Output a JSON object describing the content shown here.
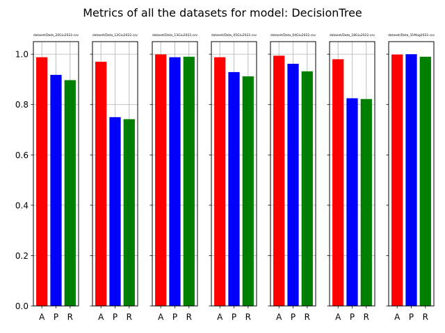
{
  "chart_data": {
    "type": "bar",
    "title": "Metrics of all the datasets for model: DecisionTree",
    "categories": [
      "A",
      "P",
      "R"
    ],
    "bar_colors": [
      "#ff0000",
      "#0000ff",
      "#008000"
    ],
    "ylim": [
      0,
      1.05
    ],
    "yticks": [
      0.0,
      0.2,
      0.4,
      0.6,
      0.8,
      1.0
    ],
    "ytick_labels": [
      "0.0",
      "0.2",
      "0.4",
      "0.6",
      "0.8",
      "1.0"
    ],
    "panels": [
      {
        "title": "dataset/Data_20Giu2022.csv",
        "values": [
          0.988,
          0.918,
          0.897
        ],
        "grid": true
      },
      {
        "title": "dataset/Data_12Giu2022.csv",
        "values": [
          0.97,
          0.75,
          0.742
        ],
        "grid": true
      },
      {
        "title": "dataset/Data_13Giu2022.csv",
        "values": [
          0.999,
          0.988,
          0.99
        ],
        "grid": true
      },
      {
        "title": "dataset/Data_05Giu2022.csv",
        "values": [
          0.988,
          0.929,
          0.912
        ],
        "grid": true
      },
      {
        "title": "dataset/Data_04Giu2022.csv",
        "values": [
          0.994,
          0.962,
          0.932
        ],
        "grid": true
      },
      {
        "title": "dataset/Data_18Giu2022.csv",
        "values": [
          0.98,
          0.825,
          0.822
        ],
        "grid": true
      },
      {
        "title": "dataset/Data_31Mag2022.csv",
        "values": [
          0.999,
          1.0,
          0.99
        ],
        "grid": false
      }
    ]
  }
}
